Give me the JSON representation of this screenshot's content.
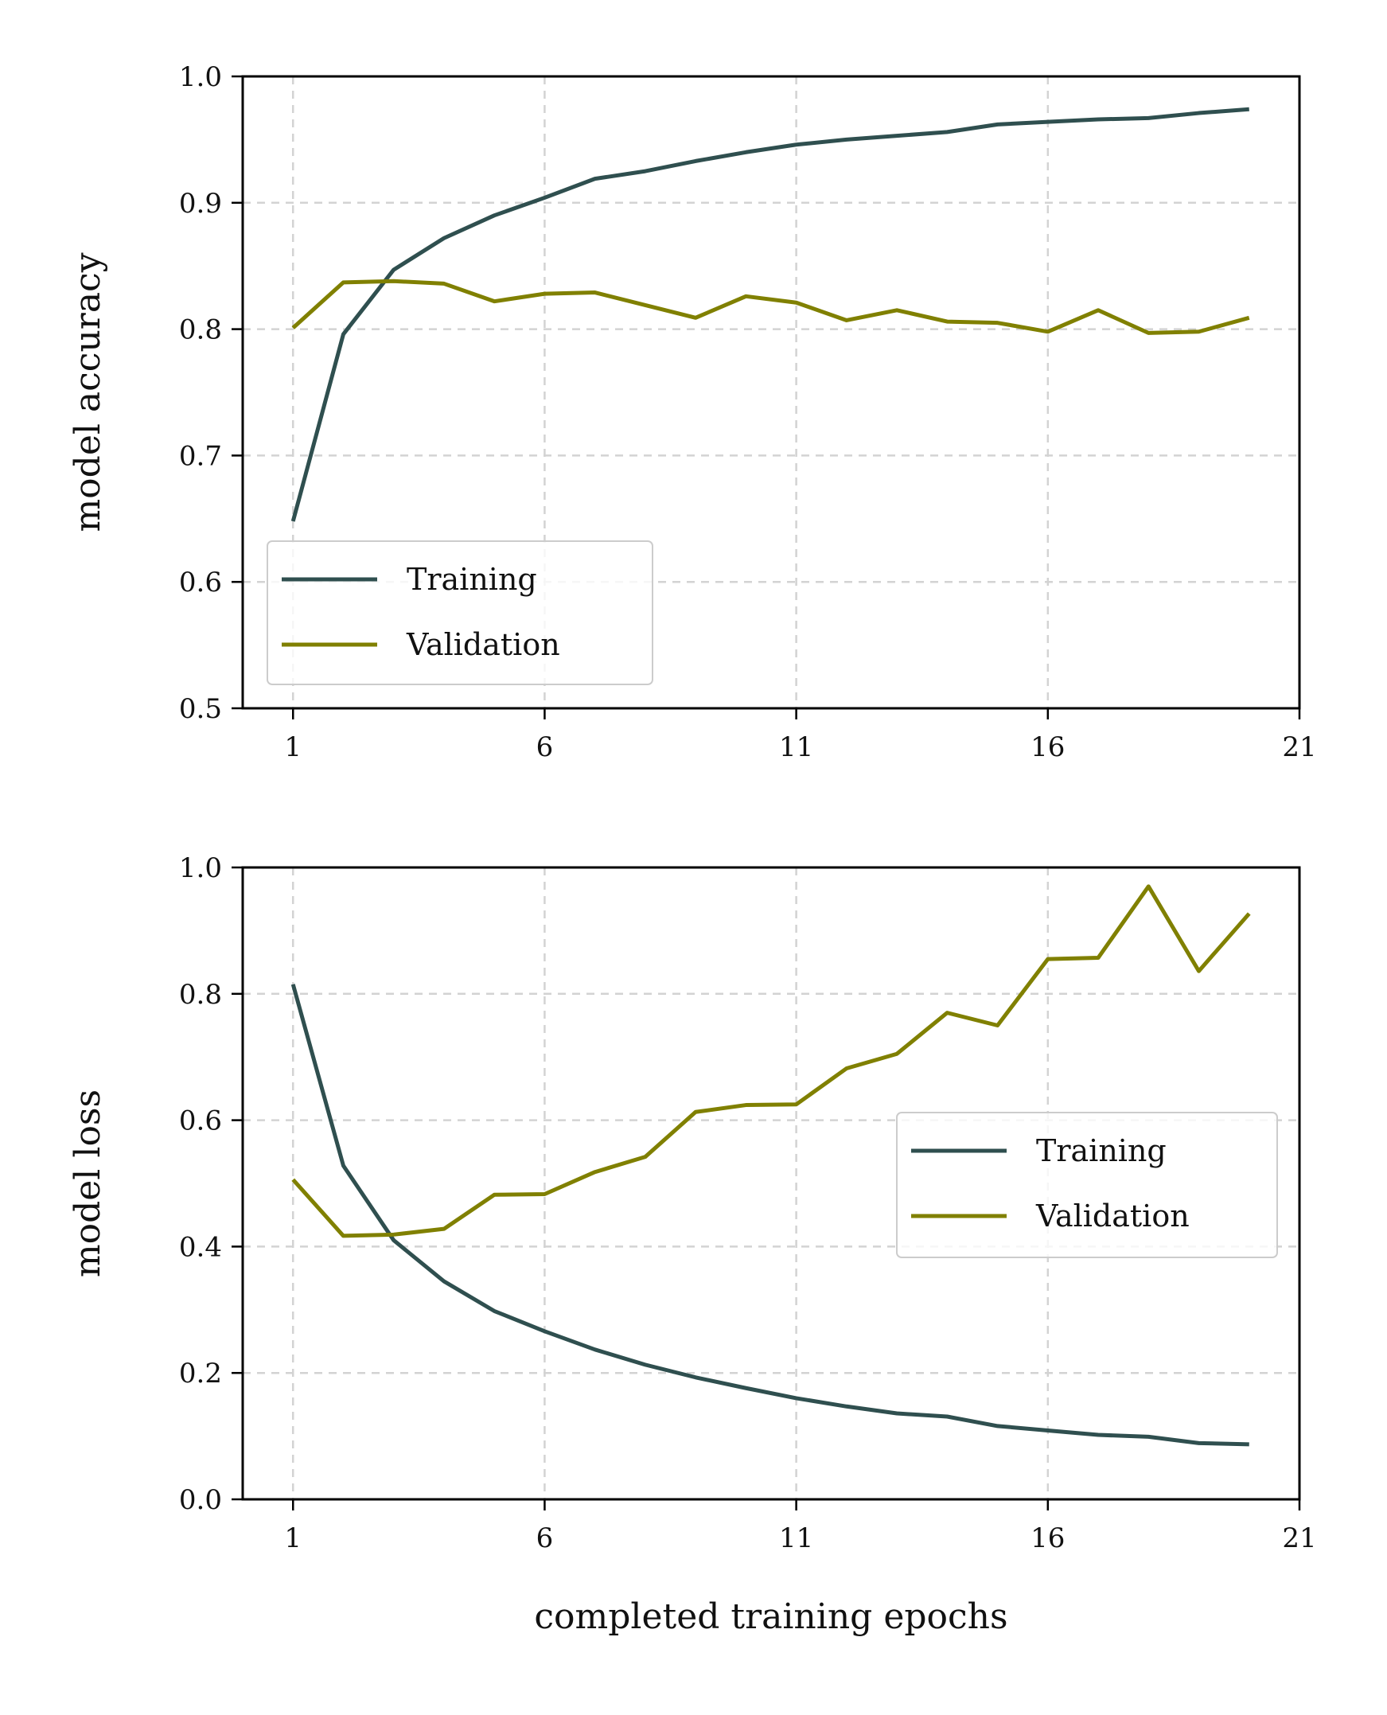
{
  "colors": {
    "training": "#2F4F4F",
    "validation": "#808000",
    "grid": "#d3d3d3",
    "axis": "#000000",
    "legend_border": "#cccccc"
  },
  "chart_data": [
    {
      "type": "line",
      "title": "",
      "xlabel": "",
      "ylabel": "model accuracy",
      "xlim": [
        0,
        21
      ],
      "ylim": [
        0.5,
        1.0
      ],
      "xticks": [
        "1",
        "6",
        "11",
        "16",
        "21"
      ],
      "yticks": [
        "0.5",
        "0.6",
        "0.7",
        "0.8",
        "0.9",
        "1.0"
      ],
      "grid": true,
      "legend_position": "lower-left",
      "x": [
        1,
        2,
        3,
        4,
        5,
        6,
        7,
        8,
        9,
        10,
        11,
        12,
        13,
        14,
        15,
        16,
        17,
        18,
        19,
        20
      ],
      "series": [
        {
          "name": "Training",
          "color": "#2F4F4F",
          "values": [
            0.648,
            0.796,
            0.847,
            0.872,
            0.89,
            0.904,
            0.919,
            0.925,
            0.933,
            0.94,
            0.946,
            0.95,
            0.953,
            0.956,
            0.962,
            0.964,
            0.966,
            0.967,
            0.971,
            0.974
          ]
        },
        {
          "name": "Validation",
          "color": "#808000",
          "values": [
            0.801,
            0.837,
            0.838,
            0.836,
            0.822,
            0.828,
            0.829,
            0.819,
            0.809,
            0.826,
            0.821,
            0.807,
            0.815,
            0.806,
            0.805,
            0.798,
            0.815,
            0.797,
            0.798,
            0.809
          ]
        }
      ]
    },
    {
      "type": "line",
      "title": "",
      "xlabel": "completed training epochs",
      "ylabel": "model loss",
      "xlim": [
        0,
        21
      ],
      "ylim": [
        0.0,
        1.0
      ],
      "xticks": [
        "1",
        "6",
        "11",
        "16",
        "21"
      ],
      "yticks": [
        "0.0",
        "0.2",
        "0.4",
        "0.6",
        "0.8",
        "1.0"
      ],
      "grid": true,
      "legend_position": "center-right",
      "x": [
        1,
        2,
        3,
        4,
        5,
        6,
        7,
        8,
        9,
        10,
        11,
        12,
        13,
        14,
        15,
        16,
        17,
        18,
        19,
        20
      ],
      "series": [
        {
          "name": "Training",
          "color": "#2F4F4F",
          "values": [
            0.815,
            0.528,
            0.41,
            0.345,
            0.298,
            0.266,
            0.237,
            0.213,
            0.193,
            0.176,
            0.16,
            0.147,
            0.136,
            0.131,
            0.116,
            0.109,
            0.102,
            0.099,
            0.089,
            0.087
          ]
        },
        {
          "name": "Validation",
          "color": "#808000",
          "values": [
            0.506,
            0.417,
            0.419,
            0.428,
            0.482,
            0.483,
            0.518,
            0.542,
            0.613,
            0.624,
            0.625,
            0.682,
            0.705,
            0.77,
            0.75,
            0.855,
            0.857,
            0.97,
            0.836,
            0.927
          ]
        }
      ]
    }
  ]
}
